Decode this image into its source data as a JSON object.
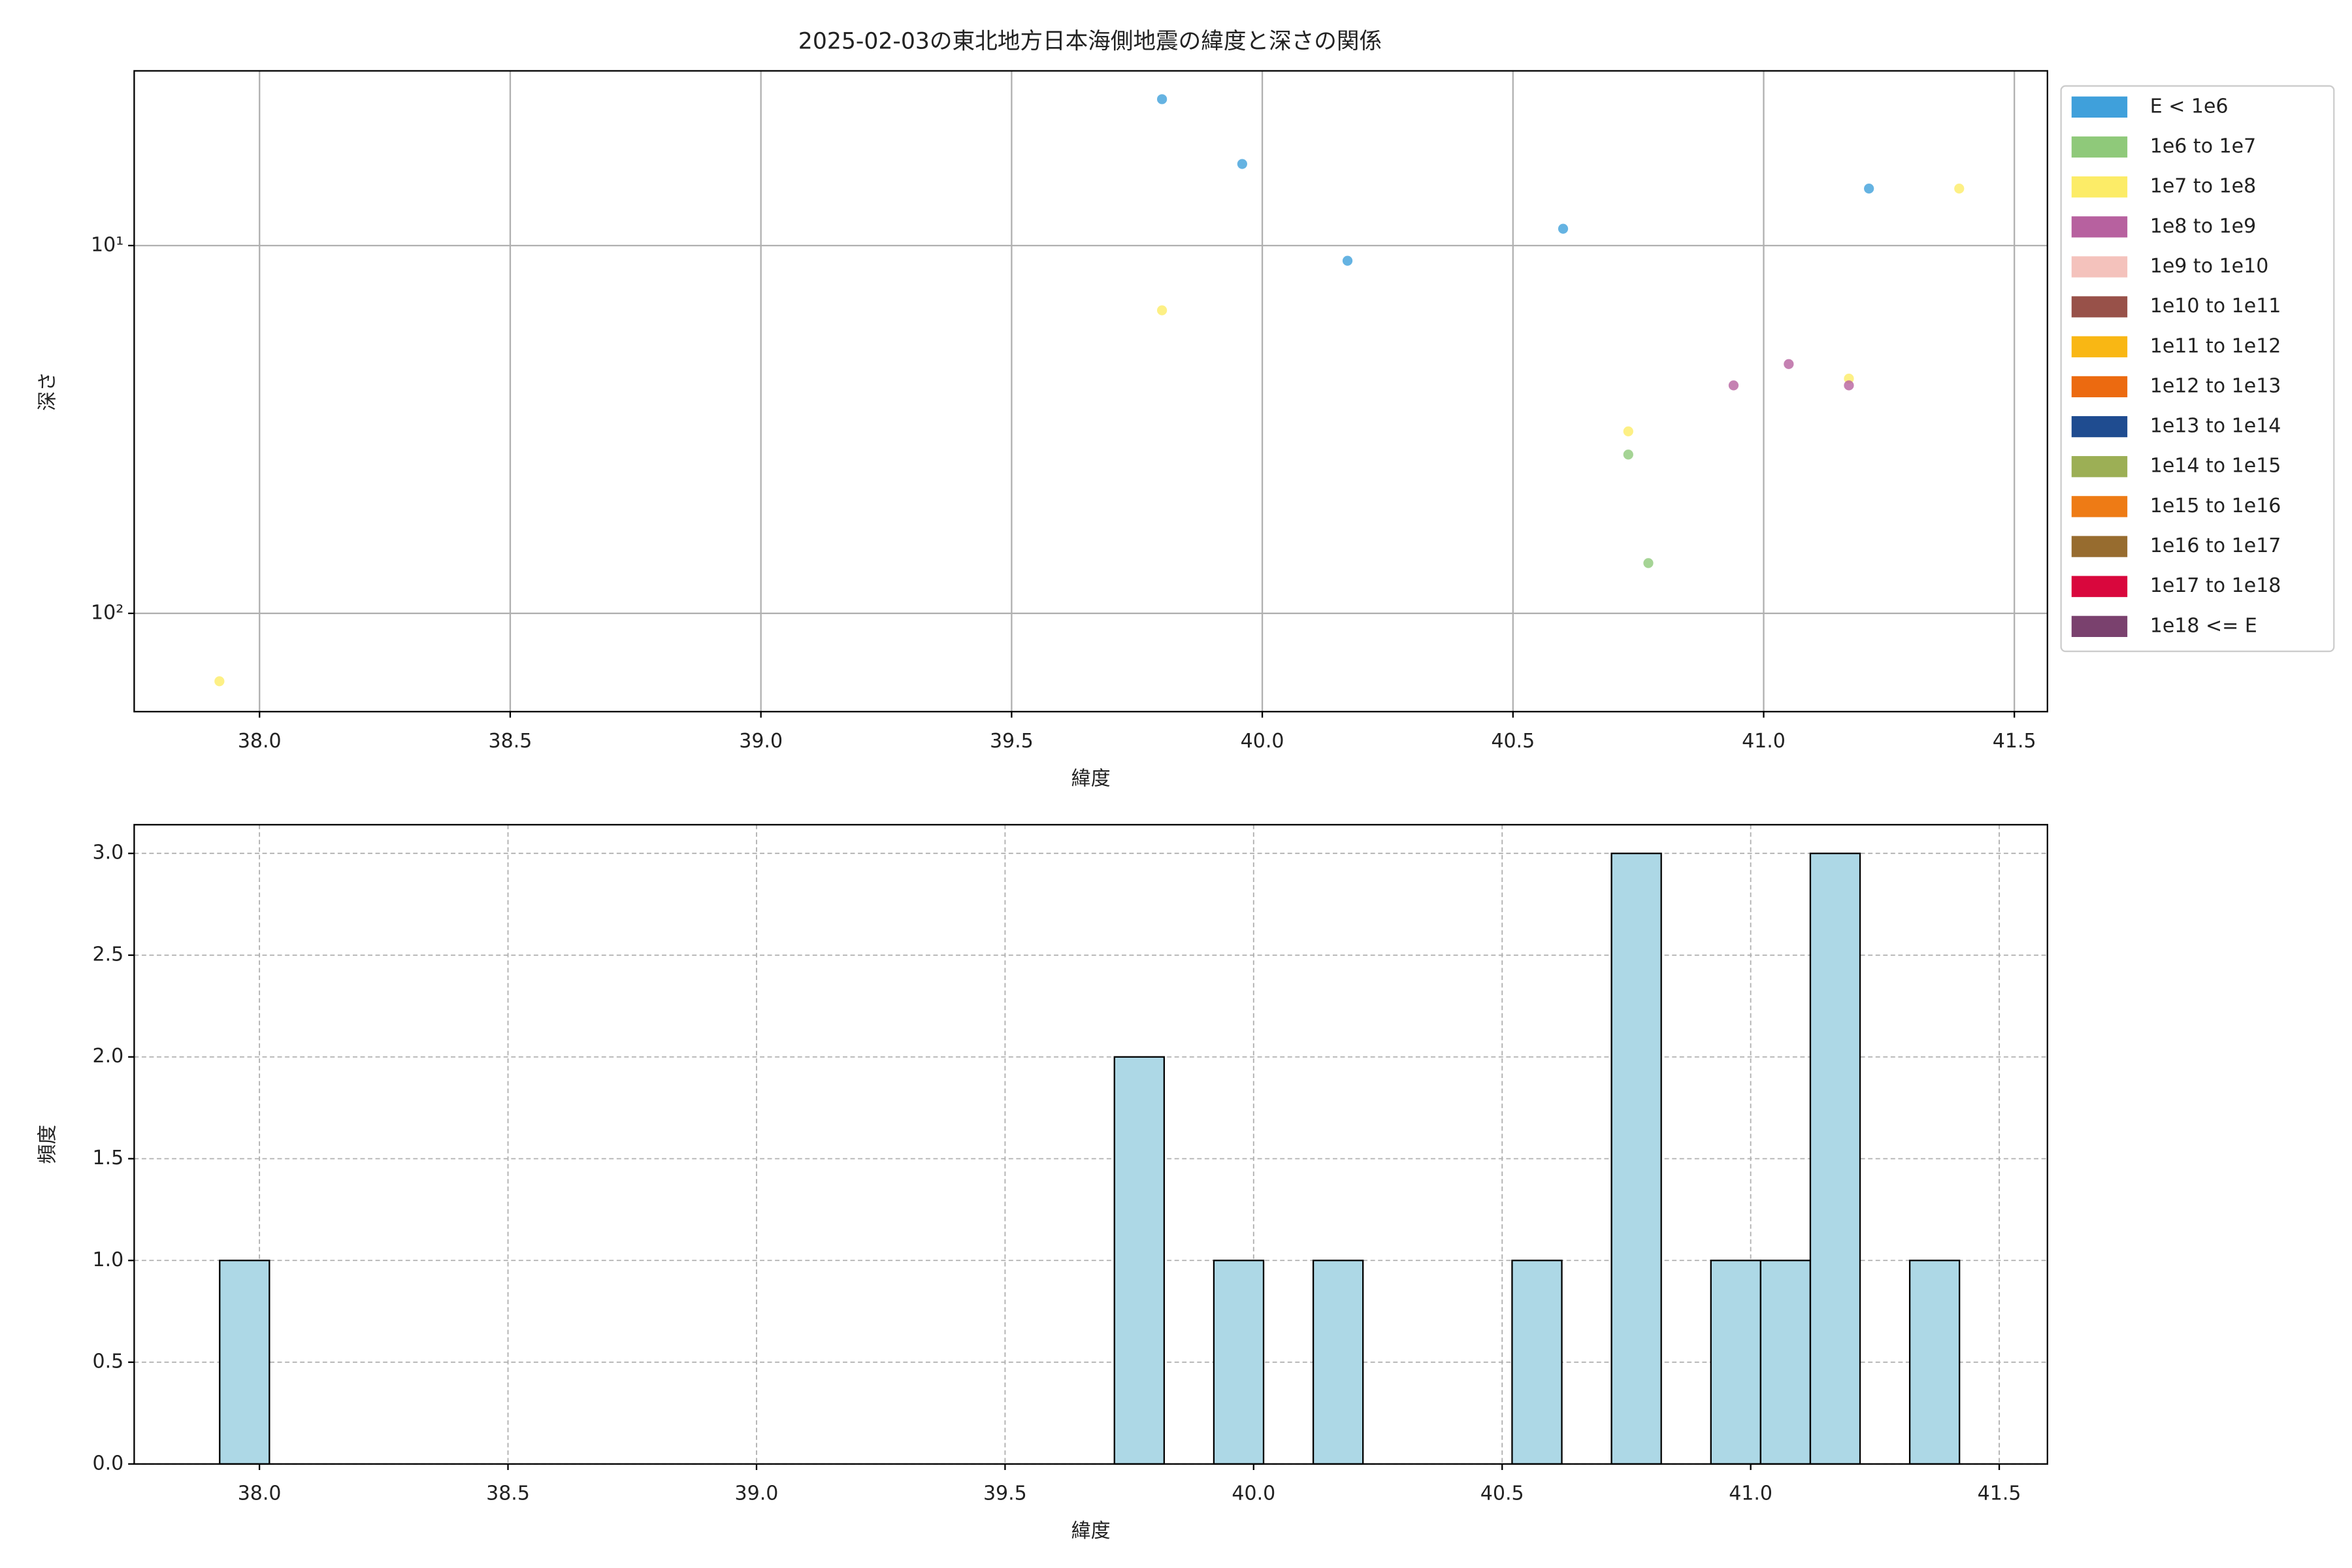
{
  "chart_data": [
    {
      "type": "scatter",
      "title": "2025-02-03の東北地方日本海側地震の緯度と深さの関係",
      "x_label": "緯度",
      "y_label": "深さ",
      "xlim": [
        37.75,
        41.566
      ],
      "xticks": [
        {
          "value": 38.0,
          "label": "38.0"
        },
        {
          "value": 38.5,
          "label": "38.5"
        },
        {
          "value": 39.0,
          "label": "39.0"
        },
        {
          "value": 39.5,
          "label": "39.5"
        },
        {
          "value": 40.0,
          "label": "40.0"
        },
        {
          "value": 40.5,
          "label": "40.5"
        },
        {
          "value": 41.0,
          "label": "41.0"
        },
        {
          "value": 41.5,
          "label": "41.5"
        }
      ],
      "ylim": [
        185,
        3.35
      ],
      "log_y": true,
      "yticks": [
        {
          "value": 10,
          "label": "10¹"
        },
        {
          "value": 100,
          "label": "10²"
        }
      ],
      "grid": true,
      "legend": "outside-right",
      "series": [
        {
          "name": "E < 1e6",
          "color": "#3fa0db",
          "x": [
            39.8,
            39.96,
            40.17,
            40.6,
            41.21
          ],
          "values": [
            4.0,
            6.0,
            11.0,
            9.0,
            7.0
          ]
        },
        {
          "name": "1e6 to 1e7",
          "color": "#8fc97a",
          "x": [
            40.73,
            40.77
          ],
          "values": [
            37,
            73
          ]
        },
        {
          "name": "1e7 to 1e8",
          "color": "#fcec67",
          "x": [
            41.39,
            39.8,
            40.73,
            41.17,
            37.92
          ],
          "values": [
            7.0,
            15,
            32,
            23,
            153
          ]
        },
        {
          "name": "1e8 to 1e9",
          "color": "#b7619f",
          "x": [
            40.94,
            41.05,
            41.17
          ],
          "values": [
            24,
            21,
            24
          ]
        },
        {
          "name": "1e9 to 1e10",
          "color": "#f4c2bc",
          "x": [],
          "values": []
        },
        {
          "name": "1e10 to 1e11",
          "color": "#985149",
          "x": [],
          "values": []
        },
        {
          "name": "1e11 to 1e12",
          "color": "#f9b714",
          "x": [],
          "values": []
        },
        {
          "name": "1e12 to 1e13",
          "color": "#ec6a10",
          "x": [],
          "values": []
        },
        {
          "name": "1e13 to 1e14",
          "color": "#1f4c90",
          "x": [],
          "values": []
        },
        {
          "name": "1e14 to 1e15",
          "color": "#9caf55",
          "x": [],
          "values": []
        },
        {
          "name": "1e15 to 1e16",
          "color": "#ee7b15",
          "x": [],
          "values": []
        },
        {
          "name": "1e16 to 1e17",
          "color": "#976c2f",
          "x": [],
          "values": []
        },
        {
          "name": "1e17 to 1e18",
          "color": "#d9073d",
          "x": [],
          "values": []
        },
        {
          "name": "1e18 <= E",
          "color": "#7a416e",
          "x": [],
          "values": []
        }
      ]
    },
    {
      "type": "histogram",
      "x_label": "緯度",
      "y_label": "頻度",
      "color": "#add8e6",
      "xlim": [
        37.748,
        41.597
      ],
      "xticks": [
        {
          "value": 38.0,
          "label": "38.0"
        },
        {
          "value": 38.5,
          "label": "38.5"
        },
        {
          "value": 39.0,
          "label": "39.0"
        },
        {
          "value": 39.5,
          "label": "39.5"
        },
        {
          "value": 40.0,
          "label": "40.0"
        },
        {
          "value": 40.5,
          "label": "40.5"
        },
        {
          "value": 41.0,
          "label": "41.0"
        },
        {
          "value": 41.5,
          "label": "41.5"
        }
      ],
      "ylim": [
        0,
        3.141
      ],
      "yticks": [
        {
          "value": 0,
          "label": "0.0"
        },
        {
          "value": 0.5,
          "label": "0.5"
        },
        {
          "value": 1,
          "label": "1.0"
        },
        {
          "value": 1.5,
          "label": "1.5"
        },
        {
          "value": 2,
          "label": "2.0"
        },
        {
          "value": 2.5,
          "label": "2.5"
        },
        {
          "value": 3,
          "label": "3.0"
        }
      ],
      "grid": true,
      "bins": [
        37.92,
        38.02,
        38.12,
        38.22,
        38.32,
        38.42,
        38.52,
        38.62,
        38.72,
        38.82,
        38.92,
        39.02,
        39.12,
        39.22,
        39.32,
        39.42,
        39.52,
        39.62,
        39.72,
        39.82,
        39.92,
        40.02,
        40.12,
        40.22,
        40.32,
        40.42,
        40.52,
        40.62,
        40.72,
        40.82,
        40.92,
        41.02,
        41.12,
        41.22,
        41.32,
        41.42
      ],
      "values": [
        1,
        0,
        0,
        0,
        0,
        0,
        0,
        0,
        0,
        0,
        0,
        0,
        0,
        0,
        0,
        0,
        0,
        0,
        2,
        0,
        1,
        0,
        1,
        0,
        0,
        0,
        1,
        0,
        3,
        0,
        1,
        1,
        3,
        0,
        1
      ]
    }
  ]
}
